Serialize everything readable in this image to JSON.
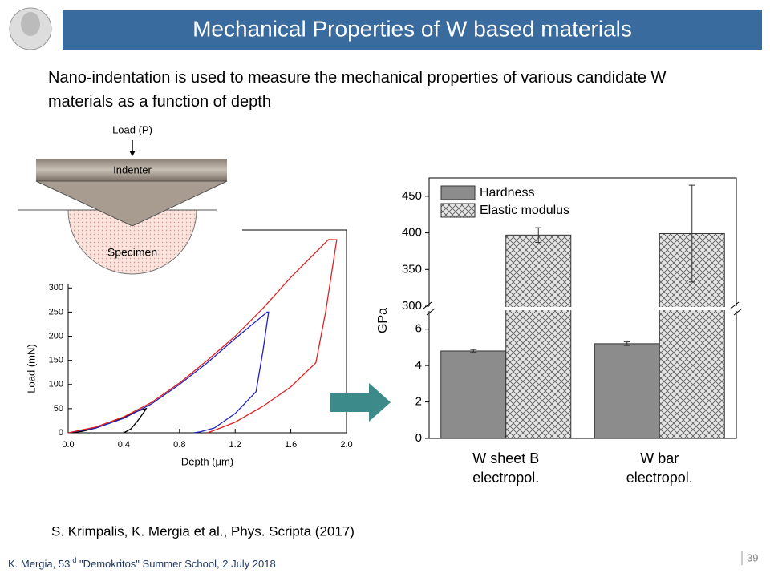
{
  "header": {
    "title": "Mechanical Properties of W based materials"
  },
  "intro": "Nano-indentation is used to measure the mechanical properties of various candidate W materials as a function of depth",
  "diagram": {
    "load_label": "Load (P)",
    "indenter": "Indenter",
    "specimen": "Specimen"
  },
  "reference": "S. Krimpalis, K. Mergia et al., Phys. Scripta (2017)",
  "footer": [
    "K. Mergia, 53",
    "rd",
    " \"Demokritos\" Summer School, 2 July 2018"
  ],
  "page_number": "39",
  "chart_data": [
    {
      "type": "line",
      "x_label": "Depth (μm)",
      "y_label": "Load (mN)",
      "xlim": [
        0,
        2.0
      ],
      "xticks": [
        {
          "value": 0,
          "label": "0.0"
        },
        0.4,
        0.8,
        1.2,
        1.6,
        {
          "value": 2.0,
          "label": "2.0"
        }
      ],
      "ylim": [
        0,
        420
      ],
      "yticks": [
        0,
        50,
        100,
        150,
        200,
        250,
        300
      ],
      "series": [
        {
          "color": "#000000",
          "x": [
            0,
            0.1,
            0.2,
            0.3,
            0.4,
            0.5,
            0.56,
            0.55,
            0.5,
            0.45,
            0.4
          ],
          "values": [
            0,
            3,
            10,
            20,
            32,
            45,
            50,
            45,
            25,
            8,
            0
          ]
        },
        {
          "color": "#2222bb",
          "x": [
            0,
            0.2,
            0.4,
            0.6,
            0.8,
            1.0,
            1.2,
            1.43,
            1.44,
            1.4,
            1.35,
            1.2,
            1.05,
            0.95,
            0.9
          ],
          "values": [
            0,
            10,
            30,
            60,
            100,
            145,
            195,
            250,
            250,
            170,
            85,
            40,
            10,
            2,
            0
          ]
        },
        {
          "color": "#dd2222",
          "x": [
            0,
            0.2,
            0.4,
            0.6,
            0.8,
            1.0,
            1.2,
            1.4,
            1.6,
            1.87,
            1.93,
            1.85,
            1.78,
            1.6,
            1.4,
            1.2,
            1.05,
            1.0
          ],
          "values": [
            0,
            12,
            33,
            63,
            103,
            150,
            200,
            258,
            322,
            400,
            400,
            250,
            145,
            95,
            55,
            22,
            5,
            0
          ]
        }
      ]
    },
    {
      "type": "bar",
      "y_label": "GPa",
      "broken_axis": true,
      "categories": [
        "W sheet B\nelectropol.",
        "W bar\nelectropol."
      ],
      "ylim_lower": [
        0,
        7
      ],
      "yticks_lower": [
        0,
        2,
        4,
        6
      ],
      "ylim_upper": [
        300,
        475
      ],
      "yticks_upper": [
        300,
        350,
        400,
        450
      ],
      "legend": "top-left",
      "series": [
        {
          "name": "Hardness",
          "color": "#8c8c8c",
          "pattern": "solid",
          "values": [
            4.8,
            5.2
          ],
          "errors": [
            0.08,
            0.1
          ]
        },
        {
          "name": "Elastic modulus",
          "color": "#d9d9d9",
          "pattern": "crosshatch",
          "values": [
            397,
            399
          ],
          "errors": [
            10,
            66
          ]
        }
      ]
    }
  ]
}
